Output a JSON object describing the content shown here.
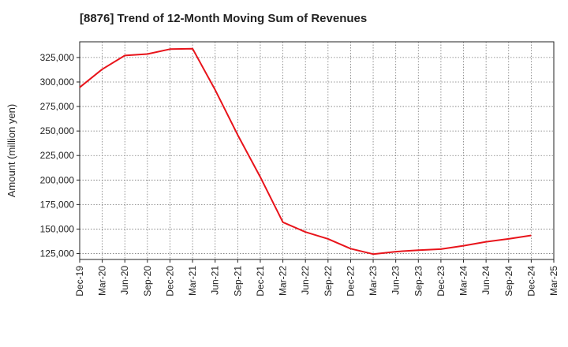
{
  "chart_data": {
    "type": "line",
    "title": "[8876]  Trend of 12-Month Moving Sum of Revenues",
    "xlabel": "",
    "ylabel": "Amount (million yen)",
    "ylim": [
      119000,
      341000
    ],
    "yticks": [
      125000,
      150000,
      175000,
      200000,
      225000,
      250000,
      275000,
      300000,
      325000
    ],
    "ytick_labels": [
      "125,000",
      "150,000",
      "175,000",
      "200,000",
      "225,000",
      "250,000",
      "275,000",
      "300,000",
      "325,000"
    ],
    "x_tick_labels": [
      "Dec-19",
      "Mar-20",
      "Jun-20",
      "Sep-20",
      "Dec-20",
      "Mar-21",
      "Jun-21",
      "Sep-21",
      "Dec-21",
      "Mar-22",
      "Jun-22",
      "Sep-22",
      "Dec-22",
      "Mar-23",
      "Jun-23",
      "Sep-23",
      "Dec-23",
      "Mar-24",
      "Jun-24",
      "Sep-24",
      "Dec-24",
      "Mar-25"
    ],
    "grid": true,
    "series": [
      {
        "color": "#e8141b",
        "x": [
          "Dec-19",
          "Mar-20",
          "Jun-20",
          "Sep-20",
          "Dec-20",
          "Mar-21",
          "Jun-21",
          "Sep-21",
          "Dec-21",
          "Mar-22",
          "Jun-22",
          "Sep-22",
          "Dec-22",
          "Mar-23",
          "Jun-23",
          "Sep-23",
          "Dec-23",
          "Mar-24",
          "Jun-24",
          "Sep-24",
          "Dec-24"
        ],
        "values": [
          294500,
          313000,
          327000,
          328500,
          333500,
          334000,
          292000,
          246000,
          203000,
          157000,
          147000,
          140000,
          130000,
          124500,
          127000,
          128500,
          129500,
          133000,
          137000,
          140000,
          143500
        ]
      }
    ]
  }
}
